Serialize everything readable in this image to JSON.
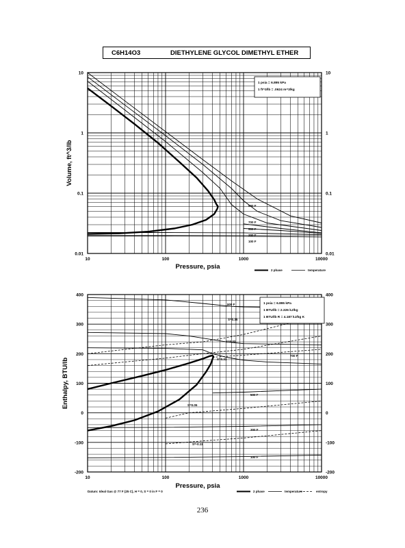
{
  "header": {
    "formula": "C6H14O3",
    "compound_name": "DIETHYLENE GLYCOL DIMETHYL ETHER"
  },
  "page_number": "236",
  "chart_data": [
    {
      "type": "line",
      "xscale": "log",
      "yscale": "log",
      "xlim": [
        10,
        10000
      ],
      "ylim": [
        0.01,
        10
      ],
      "xlabel": "Pressure,  psia",
      "ylabel": "Volume, ft^3/lb",
      "x_ticks": [
        "10",
        "100",
        "1000",
        "10000"
      ],
      "y_ticks": [
        "0.01",
        "0.1",
        "1",
        "10"
      ],
      "grid": true,
      "conversion_notes": [
        "1 psia = 6.895 kPa",
        "1 ft^3/lb = .0624 m^3/kg"
      ],
      "legend": [
        {
          "label": "2 phase",
          "style": "thick"
        },
        {
          "label": "temperature",
          "style": "thin"
        }
      ],
      "two_phase": {
        "x": [
          10,
          20,
          40,
          80,
          150,
          250,
          350,
          420,
          450,
          470,
          460,
          420,
          330,
          220,
          130,
          60,
          25,
          10
        ],
        "y": [
          5.5,
          2.8,
          1.4,
          0.68,
          0.33,
          0.18,
          0.11,
          0.078,
          0.065,
          0.06,
          0.055,
          0.045,
          0.036,
          0.03,
          0.026,
          0.023,
          0.0215,
          0.021
        ]
      },
      "series": [
        {
          "label": "",
          "x": [
            10,
            30,
            100,
            300,
            700,
            1500,
            4000,
            10000
          ],
          "y": [
            10,
            3.4,
            1.05,
            0.36,
            0.16,
            0.08,
            0.042,
            0.032
          ]
        },
        {
          "label": "900 F",
          "x": [
            10,
            30,
            100,
            300,
            700,
            1000,
            1500,
            3000,
            10000
          ],
          "y": [
            8.5,
            2.9,
            0.9,
            0.3,
            0.12,
            0.075,
            0.05,
            0.035,
            0.027
          ]
        },
        {
          "label": "",
          "x": [
            10,
            30,
            100,
            300,
            500,
            700,
            1000,
            2000,
            10000
          ],
          "y": [
            7.2,
            2.4,
            0.72,
            0.22,
            0.12,
            0.065,
            0.045,
            0.032,
            0.024
          ]
        },
        {
          "label": "700 F",
          "x": [
            1000,
            3000,
            10000
          ],
          "y": [
            0.031,
            0.026,
            0.022
          ]
        },
        {
          "label": "500 F",
          "x": [
            1000,
            3000,
            10000
          ],
          "y": [
            0.026,
            0.024,
            0.0215
          ]
        },
        {
          "label": "300 F",
          "x": [
            10,
            100,
            1000,
            10000
          ],
          "y": [
            0.0222,
            0.0222,
            0.022,
            0.0205
          ]
        },
        {
          "label": "100 F",
          "x": [
            10,
            100,
            1000,
            10000
          ],
          "y": [
            0.0195,
            0.0195,
            0.0193,
            0.0188
          ]
        }
      ]
    },
    {
      "type": "line",
      "xscale": "log",
      "xlim": [
        10,
        10000
      ],
      "ylim": [
        -200,
        400
      ],
      "xlabel": "Pressure,  psia",
      "ylabel": "Enthalpy, BTU/lb",
      "x_ticks": [
        "10",
        "100",
        "1000",
        "10000"
      ],
      "y_ticks": [
        "-200",
        "-100",
        "0",
        "100",
        "200",
        "300",
        "400"
      ],
      "grid": true,
      "conversion_notes": [
        "1 psia = 6.895 kPa",
        "1 BTU/lb = 2.326 kJ/kg",
        "1 BTU/lb R = 4.187 kJ/kg K"
      ],
      "footnote": "Datum: Ideal Gas @ 77 F (25 C), H = 0,  S = 0 in F = 0",
      "legend": [
        {
          "label": "2 phase",
          "style": "thick"
        },
        {
          "label": "temperature",
          "style": "thin"
        },
        {
          "label": "entropy",
          "style": "dashed"
        }
      ],
      "two_phase": {
        "x": [
          10,
          20,
          50,
          100,
          200,
          300,
          370,
          400,
          410,
          380,
          330,
          250,
          150,
          80,
          40,
          20,
          10
        ],
        "y": [
          80,
          100,
          125,
          145,
          168,
          183,
          192,
          194,
          190,
          165,
          138,
          95,
          45,
          5,
          -25,
          -45,
          -60
        ]
      },
      "temperature_lines": [
        {
          "label": "900 F",
          "x": [
            10,
            100,
            300,
            700,
            1000,
            10000
          ],
          "y": [
            390,
            382,
            370,
            360,
            358,
            355
          ]
        },
        {
          "label": "",
          "x": [
            10,
            100,
            200,
            350,
            600,
            1000,
            10000
          ],
          "y": [
            272,
            268,
            260,
            250,
            240,
            234,
            230
          ]
        },
        {
          "label": "700 F",
          "x": [
            10,
            100,
            200,
            300,
            400,
            600,
            1000,
            2000,
            10000
          ],
          "y": [
            220,
            218,
            215,
            213,
            200,
            188,
            178,
            172,
            165
          ]
        },
        {
          "label": "500 F",
          "x": [
            400,
            1000,
            3000,
            10000
          ],
          "y": [
            67,
            70,
            75,
            80
          ]
        },
        {
          "label": "300 F",
          "x": [
            10,
            100,
            1000,
            10000
          ],
          "y": [
            -50,
            -49,
            -46,
            -40
          ]
        },
        {
          "label": "100 F",
          "x": [
            10,
            100,
            1000,
            10000
          ],
          "y": [
            -152,
            -151,
            -148,
            -143
          ]
        }
      ],
      "entropy_lines": [
        {
          "label": "S=0.35",
          "x": [
            10,
            100,
            300,
            1000,
            10000
          ],
          "y": [
            200,
            230,
            240,
            265,
            330
          ]
        },
        {
          "label": "S=0.33",
          "x": [
            10,
            100,
            300,
            1000,
            10000
          ],
          "y": [
            160,
            185,
            200,
            215,
            260
          ]
        },
        {
          "label": "S=0.31",
          "x": [
            400,
            1000,
            10000
          ],
          "y": [
            188,
            195,
            215
          ]
        },
        {
          "label": "S=0.05",
          "x": [
            100,
            200,
            1000,
            10000
          ],
          "y": [
            -18,
            0,
            15,
            40
          ]
        },
        {
          "label": "S=-0.11",
          "x": [
            100,
            300,
            1000,
            10000
          ],
          "y": [
            -105,
            -95,
            -85,
            -60
          ]
        }
      ]
    }
  ]
}
